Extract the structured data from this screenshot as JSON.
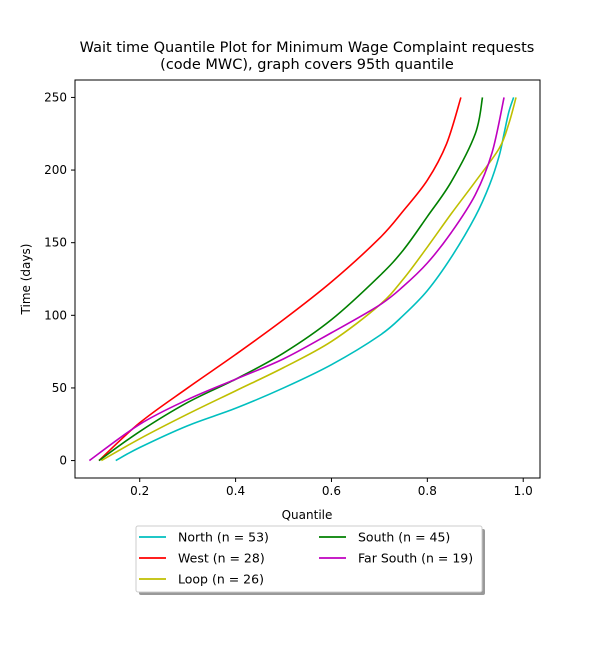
{
  "chart_data": {
    "type": "line",
    "title_line1": "Wait time Quantile Plot for Minimum Wage Complaint  requests",
    "title_line2": "(code MWC), graph covers 95th quantile",
    "xlabel": "Quantile",
    "ylabel": "Time (days)",
    "xlim": [
      0.065,
      1.035
    ],
    "ylim": [
      -12,
      262
    ],
    "xticks": [
      0.2,
      0.4,
      0.6,
      0.8,
      1.0
    ],
    "xtick_labels": [
      "0.2",
      "0.4",
      "0.6",
      "0.8",
      "1.0"
    ],
    "yticks": [
      0,
      50,
      100,
      150,
      200,
      250
    ],
    "ytick_labels": [
      "0",
      "50",
      "100",
      "150",
      "200",
      "250"
    ],
    "grid": false,
    "legend_position": "below plot, centered",
    "series": [
      {
        "name": "North (n = 53)",
        "color": "#00bfbf",
        "points": [
          [
            0.15,
            0
          ],
          [
            0.2,
            9
          ],
          [
            0.3,
            24
          ],
          [
            0.4,
            36
          ],
          [
            0.5,
            50
          ],
          [
            0.6,
            66
          ],
          [
            0.7,
            86
          ],
          [
            0.75,
            100
          ],
          [
            0.8,
            117
          ],
          [
            0.85,
            140
          ],
          [
            0.9,
            168
          ],
          [
            0.93,
            190
          ],
          [
            0.95,
            210
          ],
          [
            0.96,
            225
          ],
          [
            0.97,
            240
          ],
          [
            0.98,
            250
          ]
        ]
      },
      {
        "name": "West (n = 28)",
        "color": "#ff0000",
        "points": [
          [
            0.115,
            0
          ],
          [
            0.2,
            26
          ],
          [
            0.3,
            50
          ],
          [
            0.4,
            73
          ],
          [
            0.5,
            97
          ],
          [
            0.6,
            123
          ],
          [
            0.7,
            153
          ],
          [
            0.75,
            172
          ],
          [
            0.8,
            193
          ],
          [
            0.84,
            218
          ],
          [
            0.87,
            250
          ]
        ]
      },
      {
        "name": "Loop (n = 26)",
        "color": "#bfbf00",
        "points": [
          [
            0.12,
            0
          ],
          [
            0.2,
            15
          ],
          [
            0.3,
            32
          ],
          [
            0.4,
            48
          ],
          [
            0.5,
            64
          ],
          [
            0.6,
            82
          ],
          [
            0.7,
            107
          ],
          [
            0.75,
            125
          ],
          [
            0.8,
            147
          ],
          [
            0.85,
            170
          ],
          [
            0.9,
            192
          ],
          [
            0.95,
            215
          ],
          [
            0.97,
            232
          ],
          [
            0.985,
            250
          ]
        ]
      },
      {
        "name": "South (n = 45)",
        "color": "#008000",
        "points": [
          [
            0.115,
            0
          ],
          [
            0.2,
            20
          ],
          [
            0.3,
            40
          ],
          [
            0.4,
            56
          ],
          [
            0.5,
            74
          ],
          [
            0.6,
            97
          ],
          [
            0.7,
            127
          ],
          [
            0.75,
            145
          ],
          [
            0.8,
            168
          ],
          [
            0.85,
            192
          ],
          [
            0.9,
            225
          ],
          [
            0.915,
            250
          ]
        ]
      },
      {
        "name": "Far South (n = 19)",
        "color": "#bf00bf",
        "points": [
          [
            0.095,
            0
          ],
          [
            0.2,
            25
          ],
          [
            0.3,
            42
          ],
          [
            0.4,
            56
          ],
          [
            0.5,
            70
          ],
          [
            0.6,
            88
          ],
          [
            0.7,
            107
          ],
          [
            0.75,
            120
          ],
          [
            0.8,
            136
          ],
          [
            0.85,
            157
          ],
          [
            0.9,
            183
          ],
          [
            0.935,
            212
          ],
          [
            0.96,
            250
          ]
        ]
      }
    ]
  }
}
